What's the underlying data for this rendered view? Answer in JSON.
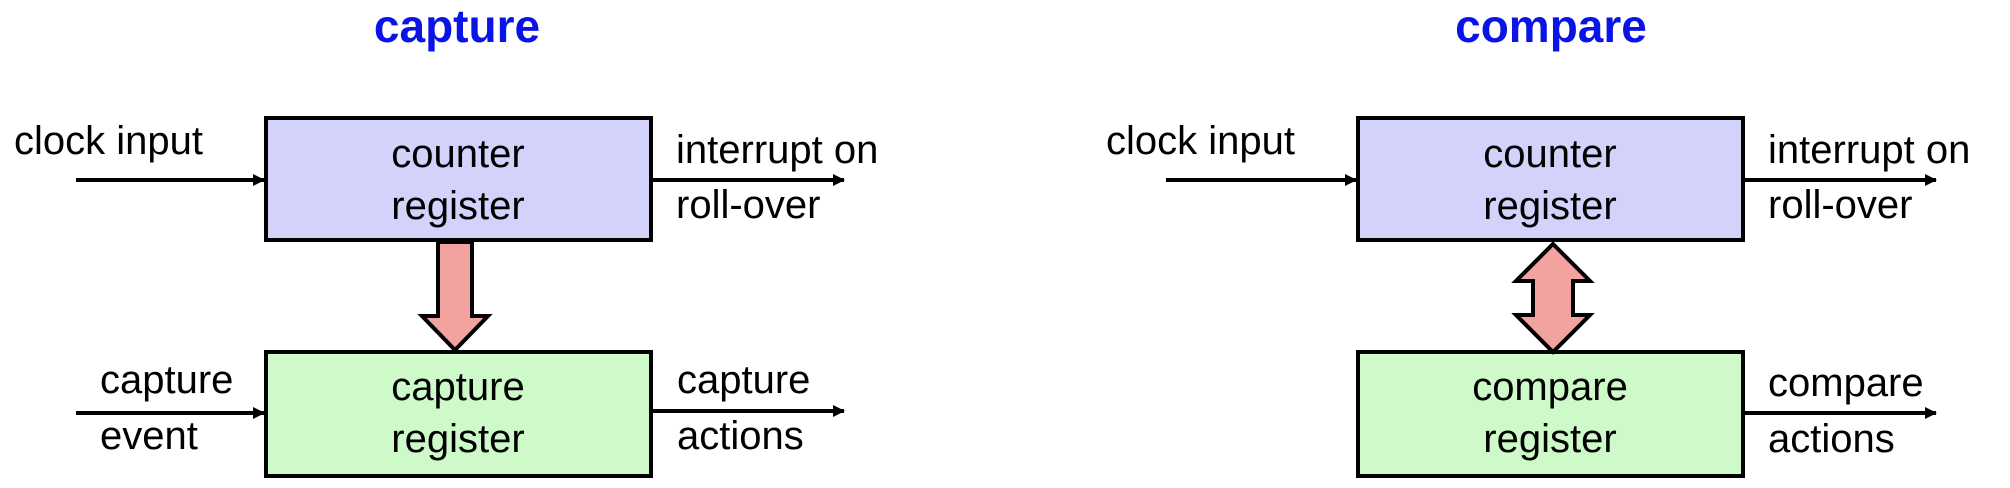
{
  "colors": {
    "title": "#0a14e6",
    "counter_fill": "#d2d2fa",
    "register_fill": "#cdfac8",
    "arrow_fill": "#f2a3a0",
    "stroke": "#000000"
  },
  "diagrams": {
    "capture": {
      "title": "capture",
      "counter_box": {
        "line1": "counter",
        "line2": "register"
      },
      "register_box": {
        "line1": "capture",
        "line2": "register"
      },
      "input_top": "clock input",
      "output_top": {
        "line1": "interrupt on",
        "line2": "roll-over"
      },
      "input_bottom": {
        "line1": "capture",
        "line2": "event"
      },
      "output_bottom": {
        "line1": "capture",
        "line2": "actions"
      },
      "link_arrow": "down-arrow"
    },
    "compare": {
      "title": "compare",
      "counter_box": {
        "line1": "counter",
        "line2": "register"
      },
      "register_box": {
        "line1": "compare",
        "line2": "register"
      },
      "input_top": "clock input",
      "output_top": {
        "line1": "interrupt on",
        "line2": "roll-over"
      },
      "output_bottom": {
        "line1": "compare",
        "line2": "actions"
      },
      "link_arrow": "double-arrow"
    }
  }
}
